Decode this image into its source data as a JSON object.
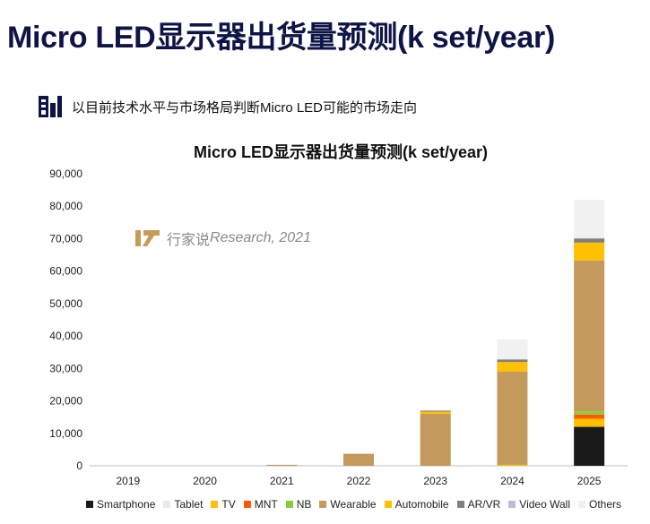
{
  "page": {
    "title": "Micro LED显示器出货量预测(k set/year)",
    "subtitle": "以目前技术水平与市场格局判断Micro LED可能的市场走向",
    "watermark": {
      "brand": "行家说",
      "tail": "Research, 2021"
    }
  },
  "icons": {
    "subtitle": "bar-chart-report-icon",
    "watermark": "hangjiashuo-logo-icon"
  },
  "chart_data": {
    "type": "bar",
    "stacked": true,
    "title": "Micro LED显示器出货量预测(k set/year)",
    "xlabel": "",
    "ylabel": "",
    "ylim": [
      0,
      90000
    ],
    "yticks": [
      0,
      10000,
      20000,
      30000,
      40000,
      50000,
      60000,
      70000,
      80000,
      90000
    ],
    "ytick_labels": [
      "0",
      "10,000",
      "20,000",
      "30,000",
      "40,000",
      "50,000",
      "60,000",
      "70,000",
      "80,000",
      "90,000"
    ],
    "categories": [
      "2019",
      "2020",
      "2021",
      "2022",
      "2023",
      "2024",
      "2025"
    ],
    "legend_position": "bottom",
    "series": [
      {
        "name": "Smartphone",
        "color": "#1a1a1a",
        "values": [
          0,
          0,
          0,
          0,
          0,
          0,
          12000
        ]
      },
      {
        "name": "Tablet",
        "color": "#e9e9e9",
        "values": [
          0,
          0,
          0,
          0,
          0,
          0,
          0
        ]
      },
      {
        "name": "TV",
        "color": "#ffc000",
        "values": [
          0,
          0,
          0,
          0,
          0,
          300,
          2500
        ]
      },
      {
        "name": "MNT",
        "color": "#ff5a00",
        "values": [
          0,
          0,
          0,
          0,
          0,
          100,
          1300
        ]
      },
      {
        "name": "NB",
        "color": "#8dc63f",
        "values": [
          0,
          0,
          0,
          0,
          0,
          100,
          1000
        ]
      },
      {
        "name": "Wearable",
        "color": "#c49a5c",
        "values": [
          0,
          0,
          300,
          3700,
          16000,
          28500,
          46500
        ]
      },
      {
        "name": "Automobile",
        "color": "#ffc000",
        "values": [
          0,
          0,
          0,
          0,
          700,
          3000,
          5500
        ]
      },
      {
        "name": "AR/VR",
        "color": "#7f7f7f",
        "values": [
          0,
          0,
          0,
          0,
          300,
          700,
          1200
        ]
      },
      {
        "name": "Video Wall",
        "color": "#b8bfcc",
        "values": [
          0,
          0,
          0,
          0,
          0,
          200,
          200
        ]
      },
      {
        "name": "Others",
        "color": "#f1f1f1",
        "values": [
          0,
          0,
          0,
          0,
          0,
          6000,
          11800
        ]
      }
    ]
  }
}
